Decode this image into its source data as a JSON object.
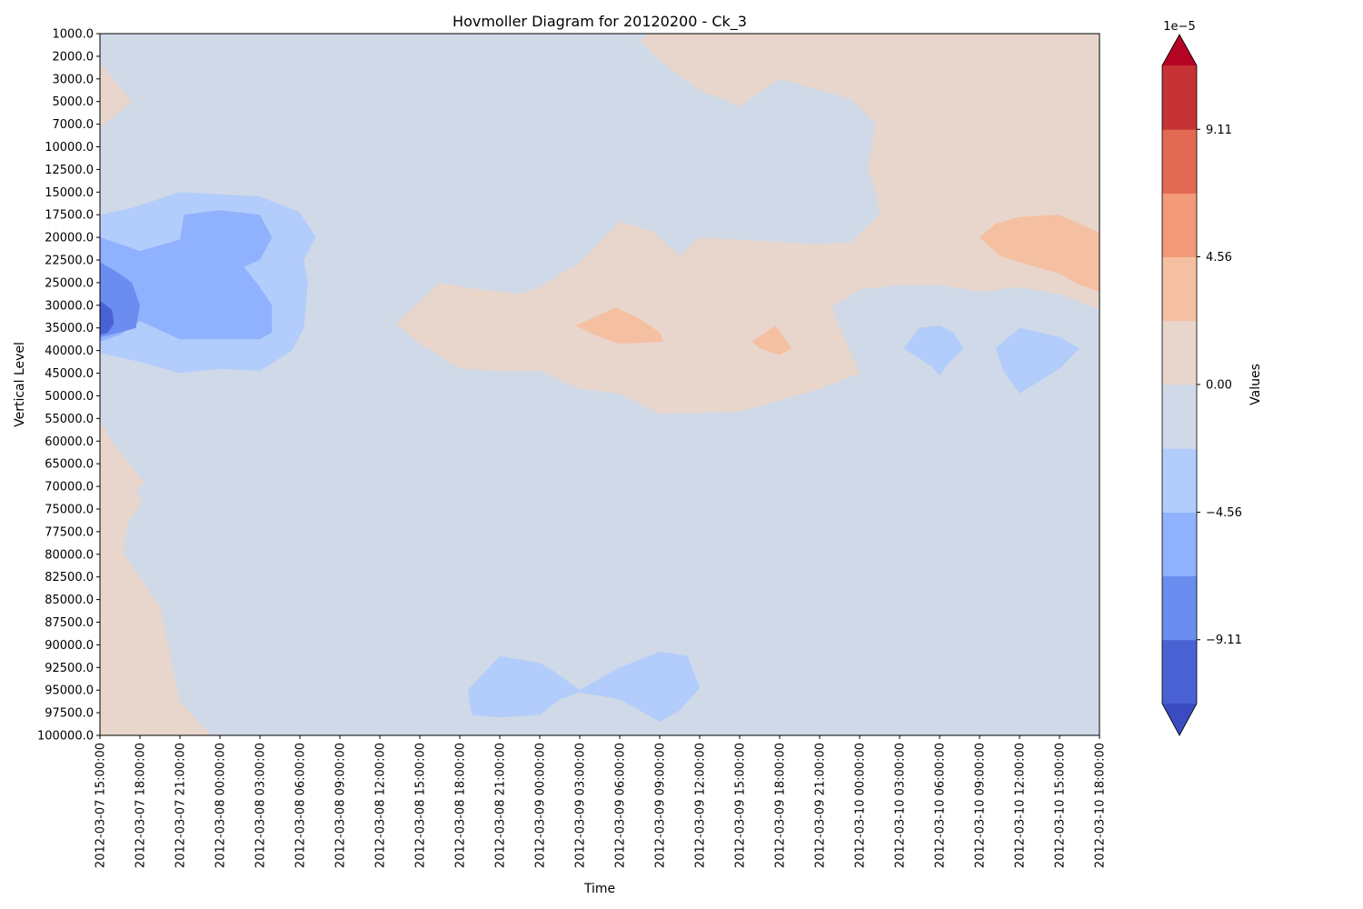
{
  "chart_data": {
    "type": "heatmap",
    "subtype": "filled-contour",
    "title": "Hovmoller Diagram for 20120200 - Ck_3",
    "xlabel": "Time",
    "ylabel": "Vertical Level",
    "y_axis_inverted": true,
    "y_scale": "categorical-levels",
    "grid": false,
    "x_ticks": [
      "2012-03-07 15:00:00",
      "2012-03-07 18:00:00",
      "2012-03-07 21:00:00",
      "2012-03-08 00:00:00",
      "2012-03-08 03:00:00",
      "2012-03-08 06:00:00",
      "2012-03-08 09:00:00",
      "2012-03-08 12:00:00",
      "2012-03-08 15:00:00",
      "2012-03-08 18:00:00",
      "2012-03-08 21:00:00",
      "2012-03-09 00:00:00",
      "2012-03-09 03:00:00",
      "2012-03-09 06:00:00",
      "2012-03-09 09:00:00",
      "2012-03-09 12:00:00",
      "2012-03-09 15:00:00",
      "2012-03-09 18:00:00",
      "2012-03-09 21:00:00",
      "2012-03-10 00:00:00",
      "2012-03-10 03:00:00",
      "2012-03-10 06:00:00",
      "2012-03-10 09:00:00",
      "2012-03-10 12:00:00",
      "2012-03-10 15:00:00",
      "2012-03-10 18:00:00"
    ],
    "y_ticks": [
      "1000.0",
      "2000.0",
      "3000.0",
      "5000.0",
      "7000.0",
      "10000.0",
      "12500.0",
      "15000.0",
      "17500.0",
      "20000.0",
      "22500.0",
      "25000.0",
      "30000.0",
      "35000.0",
      "40000.0",
      "45000.0",
      "50000.0",
      "55000.0",
      "60000.0",
      "65000.0",
      "70000.0",
      "75000.0",
      "77500.0",
      "80000.0",
      "82500.0",
      "85000.0",
      "87500.0",
      "90000.0",
      "92500.0",
      "95000.0",
      "97500.0",
      "100000.0"
    ],
    "colorbar": {
      "label": "Values",
      "scale_label": "1e−5",
      "extend": "both",
      "tick_labels": [
        "−9.11",
        "−4.56",
        "0.00",
        "4.56",
        "9.11"
      ],
      "tick_values": [
        -9.11,
        -4.56,
        0.0,
        4.56,
        9.11
      ],
      "levels": [
        -11.39,
        -9.11,
        -6.83,
        -4.56,
        -2.28,
        0.0,
        2.28,
        4.56,
        6.83,
        9.11,
        11.39
      ],
      "colors": [
        "#4961d2",
        "#6b8df0",
        "#8fb1fe",
        "#b2ccfb",
        "#cfd9e8",
        "#e8d6cc",
        "#f5bfa2",
        "#f29a79",
        "#e26952",
        "#c53334"
      ],
      "under_color": "#3b4cc0",
      "over_color": "#b40426"
    },
    "background_level": -1.0,
    "regions": [
      {
        "value": 1.0,
        "points": [
          [
            0,
            1.3
          ],
          [
            0.8,
            3
          ],
          [
            0,
            4.2
          ]
        ]
      },
      {
        "value": 1.0,
        "points": [
          [
            0,
            17.1
          ],
          [
            0.3,
            18
          ],
          [
            1.1,
            19.8
          ],
          [
            0.6,
            20.8
          ],
          [
            0.6,
            23
          ],
          [
            1.5,
            25.3
          ],
          [
            2.0,
            29.5
          ],
          [
            2.9,
            31.2
          ],
          [
            0,
            31.0
          ]
        ]
      },
      {
        "value": 1.0,
        "points": [
          [
            7.4,
            12.8
          ],
          [
            8.5,
            11.0
          ],
          [
            9.5,
            11.3
          ],
          [
            10.5,
            11.5
          ],
          [
            11.0,
            11.2
          ],
          [
            12.0,
            10.1
          ],
          [
            13.0,
            8.3
          ],
          [
            13.8,
            8.7
          ],
          [
            14.5,
            9.8
          ],
          [
            15.0,
            9.0
          ],
          [
            17.0,
            9.2
          ],
          [
            18.0,
            9.3
          ],
          [
            18.8,
            9.2
          ],
          [
            19.5,
            8.0
          ],
          [
            19.4,
            7.0
          ],
          [
            19.2,
            6.0
          ],
          [
            19.4,
            4.0
          ],
          [
            18.8,
            2.9
          ],
          [
            17.0,
            2.0
          ],
          [
            16.0,
            3.2
          ],
          [
            15.0,
            2.5
          ],
          [
            14.0,
            1.2
          ],
          [
            13.5,
            0.3
          ],
          [
            13.7,
            0
          ],
          [
            25.0,
            0
          ],
          [
            25.0,
            12.2
          ],
          [
            24.0,
            11.5
          ],
          [
            23.0,
            11.2
          ],
          [
            22.0,
            11.4
          ],
          [
            21.0,
            11.1
          ],
          [
            20.0,
            11.1
          ],
          [
            19.0,
            11.3
          ],
          [
            18.3,
            12.1
          ],
          [
            19.0,
            15.0
          ],
          [
            18.0,
            15.7
          ],
          [
            16.0,
            16.7
          ],
          [
            14.0,
            16.8
          ],
          [
            13.0,
            15.9
          ],
          [
            12.0,
            15.7
          ],
          [
            11.0,
            14.9
          ],
          [
            10.0,
            14.9
          ],
          [
            9.0,
            14.8
          ],
          [
            8.0,
            13.7
          ]
        ]
      },
      {
        "value": 3.5,
        "points": [
          [
            22.0,
            9.0
          ],
          [
            22.4,
            8.4
          ],
          [
            23.0,
            8.1
          ],
          [
            24.0,
            8.0
          ],
          [
            25.0,
            8.8
          ],
          [
            25.0,
            11.4
          ],
          [
            24.5,
            11.1
          ],
          [
            24.0,
            10.6
          ],
          [
            23.0,
            10.1
          ],
          [
            22.5,
            9.8
          ]
        ]
      },
      {
        "value": 3.5,
        "points": [
          [
            11.9,
            12.9
          ],
          [
            12.9,
            12.1
          ],
          [
            13.5,
            12.6
          ],
          [
            14.0,
            13.2
          ],
          [
            14.1,
            13.6
          ],
          [
            13.0,
            13.7
          ],
          [
            12.5,
            13.4
          ]
        ]
      },
      {
        "value": 3.5,
        "points": [
          [
            16.3,
            13.6
          ],
          [
            16.9,
            12.9
          ],
          [
            17.3,
            13.9
          ],
          [
            17.0,
            14.2
          ],
          [
            16.5,
            13.9
          ]
        ]
      },
      {
        "value": 1.0,
        "points": [
          [
            0,
            17.6
          ],
          [
            0.7,
            19.5
          ],
          [
            1.05,
            20.7
          ],
          [
            0.7,
            21.6
          ],
          [
            0.6,
            22.6
          ],
          [
            0.65,
            24.0
          ],
          [
            0.7,
            25.5
          ],
          [
            1.0,
            27.0
          ],
          [
            1.5,
            28.3
          ],
          [
            2.0,
            29.6
          ],
          [
            2.9,
            31.2
          ],
          [
            0,
            31.0
          ]
        ]
      },
      {
        "value": -3.5,
        "points": [
          [
            0,
            8.0
          ],
          [
            0.8,
            7.7
          ],
          [
            2.0,
            7.0
          ],
          [
            3.0,
            7.1
          ],
          [
            4.0,
            7.2
          ],
          [
            5.0,
            7.9
          ],
          [
            5.4,
            9.0
          ],
          [
            5.1,
            10.0
          ],
          [
            5.2,
            11.0
          ],
          [
            5.1,
            13.0
          ],
          [
            4.8,
            14.0
          ],
          [
            4.0,
            14.9
          ],
          [
            3.0,
            14.8
          ],
          [
            2.0,
            15.0
          ],
          [
            1.0,
            14.5
          ],
          [
            0,
            14.1
          ]
        ]
      },
      {
        "value": -6.0,
        "points": [
          [
            0,
            9.0
          ],
          [
            1.0,
            9.6
          ],
          [
            2.0,
            9.1
          ],
          [
            2.1,
            8.0
          ],
          [
            3.0,
            7.8
          ],
          [
            4.0,
            8.0
          ],
          [
            4.3,
            9.0
          ],
          [
            4.0,
            10.0
          ],
          [
            3.6,
            10.3
          ],
          [
            4.0,
            11.2
          ],
          [
            4.3,
            12.0
          ],
          [
            4.3,
            13.2
          ],
          [
            4.0,
            13.5
          ],
          [
            3.0,
            13.5
          ],
          [
            2.0,
            13.5
          ],
          [
            1.0,
            12.7
          ],
          [
            0.5,
            13.3
          ],
          [
            0,
            13.6
          ]
        ]
      },
      {
        "value": -8.0,
        "points": [
          [
            0,
            10.1
          ],
          [
            0.4,
            10.5
          ],
          [
            0.8,
            11.0
          ],
          [
            1.0,
            12.0
          ],
          [
            0.9,
            13.0
          ],
          [
            0.5,
            13.2
          ],
          [
            0,
            13.4
          ]
        ]
      },
      {
        "value": -10.5,
        "points": [
          [
            0,
            11.8
          ],
          [
            0.3,
            12.2
          ],
          [
            0.35,
            12.8
          ],
          [
            0.2,
            13.2
          ],
          [
            0,
            13.3
          ]
        ]
      },
      {
        "value": -6.0,
        "points": [
          [
            1.9,
            11.9
          ],
          [
            2.1,
            11.8
          ],
          [
            2.0,
            12.3
          ]
        ]
      },
      {
        "value": -3.5,
        "points": [
          [
            20.1,
            13.9
          ],
          [
            20.5,
            13.0
          ],
          [
            21.0,
            12.9
          ],
          [
            21.35,
            13.2
          ],
          [
            21.6,
            13.9
          ],
          [
            21.2,
            14.6
          ],
          [
            21.0,
            15.1
          ],
          [
            20.8,
            14.7
          ]
        ]
      },
      {
        "value": -3.5,
        "points": [
          [
            22.4,
            13.9
          ],
          [
            23.0,
            13.0
          ],
          [
            24.0,
            13.4
          ],
          [
            24.5,
            13.9
          ],
          [
            24.0,
            14.8
          ],
          [
            23.0,
            15.9
          ],
          [
            22.6,
            14.9
          ]
        ]
      },
      {
        "value": -3.5,
        "points": [
          [
            9.2,
            29.0
          ],
          [
            10.0,
            27.5
          ],
          [
            11.0,
            27.8
          ],
          [
            11.3,
            28.1
          ],
          [
            12.0,
            29.0
          ],
          [
            13.0,
            28.0
          ],
          [
            13.3,
            27.8
          ],
          [
            14.0,
            27.3
          ],
          [
            14.7,
            27.5
          ],
          [
            15.0,
            28.9
          ],
          [
            14.5,
            29.9
          ],
          [
            14.0,
            30.4
          ],
          [
            13.0,
            29.4
          ],
          [
            12.0,
            29.1
          ],
          [
            11.5,
            29.4
          ],
          [
            11.0,
            30.1
          ],
          [
            10.0,
            30.2
          ],
          [
            9.3,
            30.1
          ]
        ]
      }
    ]
  }
}
